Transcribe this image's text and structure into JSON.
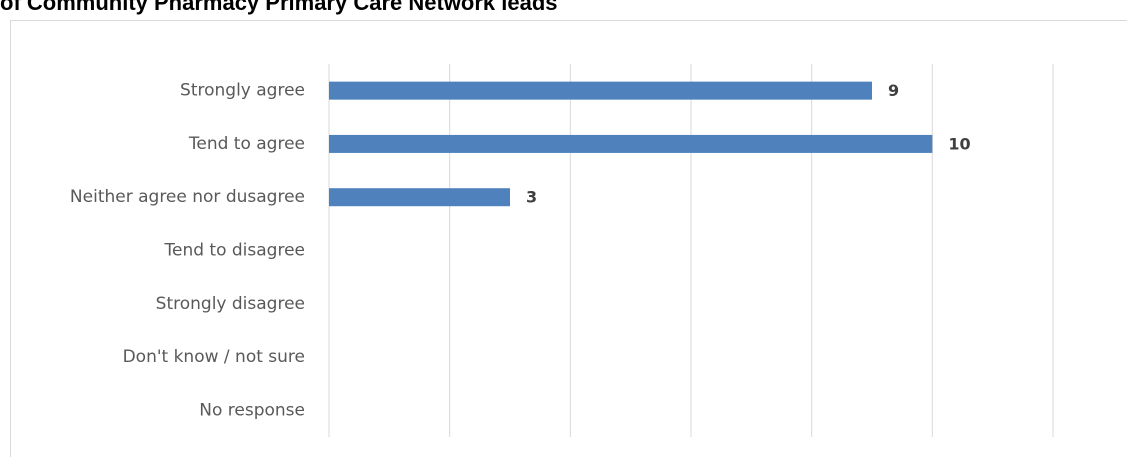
{
  "chart_data": {
    "type": "hbar",
    "title": "of Community Pharmacy Primary Care Network leads",
    "categories": [
      "Strongly agree",
      "Tend to agree",
      "Neither agree nor dusagree",
      "Tend to disagree",
      "Strongly disagree",
      "Don't know / not sure",
      "No response"
    ],
    "values": [
      9,
      10,
      3,
      null,
      null,
      null,
      null
    ],
    "color": "#4f81bd",
    "xlim": [
      0,
      12
    ],
    "xticks": [
      0,
      2,
      4,
      6,
      8,
      10,
      12
    ],
    "grid": true
  }
}
